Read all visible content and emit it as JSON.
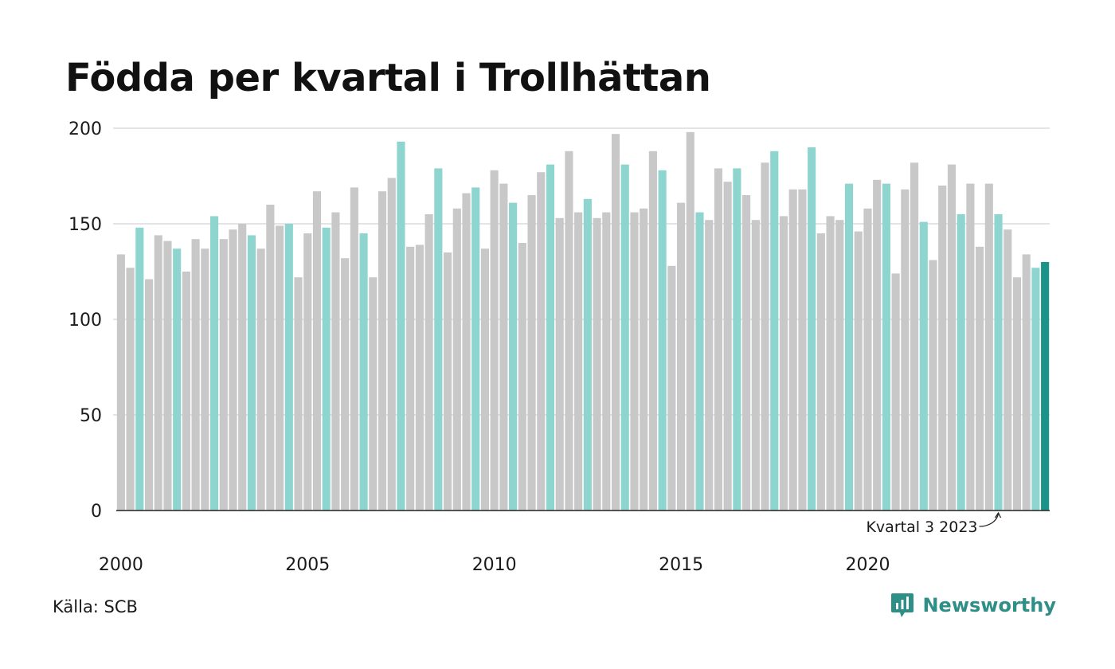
{
  "title": "Födda per kvartal i Trollhättan",
  "source": "Källa: SCB",
  "brand": {
    "name": "Newsworthy"
  },
  "colors": {
    "gray": "#c8c8c8",
    "q3": "#8fd5cf",
    "latest": "#1a9488",
    "grid": "#e3e3e8",
    "axis": "#222222"
  },
  "chart_data": {
    "type": "bar",
    "start_year": 2000,
    "highlight_quarter": 3,
    "x_tick_labels": [
      "2000",
      "2005",
      "2010",
      "2015",
      "2020"
    ],
    "y_ticks": [
      0,
      50,
      100,
      150,
      200
    ],
    "ylim": [
      0,
      200
    ],
    "grid": true,
    "annotation": "Kvartal 3 2023",
    "values": [
      134,
      127,
      148,
      121,
      144,
      141,
      137,
      125,
      142,
      137,
      154,
      142,
      147,
      150,
      144,
      137,
      160,
      149,
      150,
      122,
      145,
      167,
      148,
      156,
      132,
      169,
      145,
      122,
      167,
      174,
      193,
      138,
      139,
      155,
      179,
      135,
      158,
      166,
      169,
      137,
      178,
      171,
      161,
      140,
      165,
      177,
      181,
      153,
      188,
      156,
      163,
      153,
      156,
      197,
      181,
      156,
      158,
      188,
      178,
      128,
      161,
      198,
      156,
      152,
      179,
      172,
      179,
      165,
      152,
      182,
      188,
      154,
      168,
      168,
      190,
      145,
      154,
      152,
      171,
      146,
      158,
      173,
      171,
      124,
      168,
      182,
      151,
      131,
      170,
      181,
      155,
      171,
      138,
      171,
      155,
      147,
      122,
      134,
      127,
      130
    ]
  }
}
